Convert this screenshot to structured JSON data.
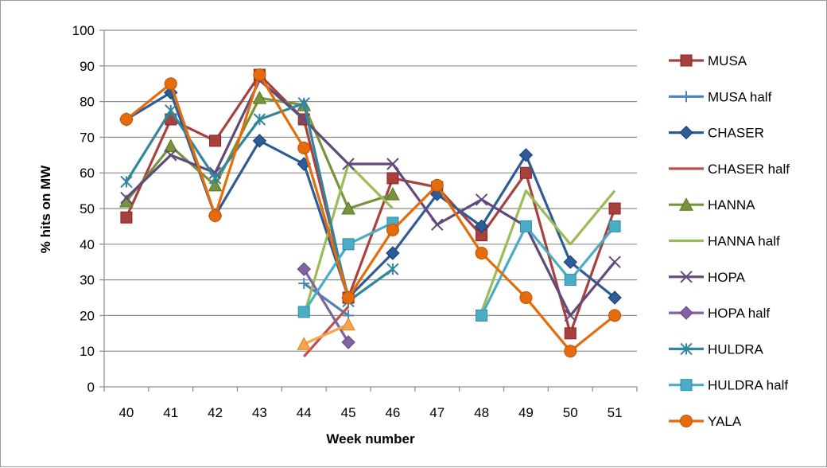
{
  "chart_data": {
    "type": "line",
    "xlabel": "Week number",
    "ylabel": "% hits on MW",
    "ylim": [
      0,
      100
    ],
    "yticks": [
      0,
      10,
      20,
      30,
      40,
      50,
      60,
      70,
      80,
      90,
      100
    ],
    "categories": [
      "40",
      "41",
      "42",
      "43",
      "44",
      "45",
      "46",
      "47",
      "48",
      "49",
      "50",
      "51"
    ],
    "grid": "horizontal",
    "legend_position": "right",
    "series": [
      {
        "name": "MUSA",
        "color": "#a8413e",
        "marker": "square",
        "values": [
          47.5,
          75,
          69,
          87.5,
          75,
          25,
          58.5,
          56,
          42.5,
          60,
          15,
          50
        ]
      },
      {
        "name": "MUSA half",
        "color": "#4f81bd",
        "marker": "plus",
        "values": [
          null,
          null,
          null,
          null,
          29,
          20,
          null,
          null,
          null,
          null,
          null,
          null
        ]
      },
      {
        "name": "CHASER",
        "color": "#2f5c97",
        "marker": "diamond",
        "values": [
          75,
          82.5,
          48,
          69,
          62.5,
          25,
          37.5,
          54,
          45,
          65,
          35,
          25
        ]
      },
      {
        "name": "CHASER half",
        "color": "#c0504d",
        "marker": "none",
        "values": [
          null,
          null,
          null,
          null,
          8.5,
          22.5,
          null,
          null,
          null,
          null,
          null,
          null
        ]
      },
      {
        "name": "HANNA",
        "color": "#77933c",
        "marker": "triangle",
        "values": [
          52,
          67.5,
          56.5,
          81,
          79,
          50,
          54,
          null,
          null,
          null,
          null,
          null
        ]
      },
      {
        "name": "HANNA half",
        "color": "#9bbb59",
        "marker": "none",
        "values": [
          null,
          null,
          null,
          null,
          20,
          62.5,
          50,
          null,
          21,
          55,
          40,
          55
        ]
      },
      {
        "name": "HOPA",
        "color": "#604a7b",
        "marker": "x",
        "values": [
          53,
          65,
          60,
          86,
          75,
          62.5,
          62.5,
          45.5,
          52.5,
          45,
          20,
          35
        ]
      },
      {
        "name": "HOPA half",
        "color": "#8064a2",
        "marker": "diamond",
        "values": [
          null,
          null,
          null,
          null,
          33,
          12.5,
          null,
          null,
          null,
          null,
          null,
          null
        ]
      },
      {
        "name": "HULDRA",
        "color": "#31859c",
        "marker": "star",
        "values": [
          57.5,
          77.5,
          58.5,
          75,
          79.5,
          24,
          33,
          null,
          null,
          null,
          null,
          null
        ]
      },
      {
        "name": "HULDRA half",
        "color": "#4bacc6",
        "marker": "square",
        "values": [
          null,
          null,
          null,
          null,
          21,
          40,
          46,
          null,
          20,
          45,
          30,
          45
        ]
      },
      {
        "name": "YALA",
        "color": "#e46c0a",
        "marker": "circle",
        "values": [
          75,
          85,
          48,
          87.5,
          67,
          25,
          44,
          56.5,
          37.5,
          25,
          10,
          20
        ]
      },
      {
        "name": "",
        "color": "#f9a34a",
        "marker": "triangle",
        "in_legend": false,
        "values": [
          null,
          null,
          null,
          null,
          12,
          17.5,
          null,
          null,
          null,
          null,
          null,
          null
        ]
      }
    ]
  }
}
